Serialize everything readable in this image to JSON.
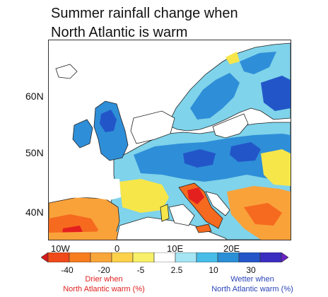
{
  "title": {
    "line1": "Summer rainfall change when",
    "line2": "North Atlantic is warm"
  },
  "map": {
    "latitude_labels": [
      "60N",
      "50N",
      "40N"
    ],
    "longitude_labels": [
      "10W",
      "0",
      "10E",
      "20E"
    ],
    "colors": {
      "land_neutral": "#ffffff",
      "ocean": "#ffffff",
      "coastline": "#222222",
      "very_dry": "#e4201e",
      "dry": "#f56a1e",
      "mid_dry": "#f9a23a",
      "light_dry": "#f7e64a",
      "light_wet": "#7fd3ea",
      "mid_wet": "#2f8ed8",
      "wet": "#2256c8"
    }
  },
  "colorbar": {
    "ticks": [
      "-40",
      "-20",
      "-5",
      "2.5",
      "10",
      "30"
    ],
    "colors": [
      "#d61a1a",
      "#f04a1a",
      "#f77d1f",
      "#f9a63a",
      "#fdd24a",
      "#f7f068",
      "#ffffff",
      "#a6e5f3",
      "#47bde8",
      "#2a8fd6",
      "#2456c8",
      "#3a2ec0",
      "#6a22c4"
    ]
  },
  "legend": {
    "drier_line1": "Drier when",
    "drier_line2": "North Atlantic warm (%)",
    "wetter_line1": "Wetter when",
    "wetter_line2": "North Atlantic warm (%)"
  }
}
